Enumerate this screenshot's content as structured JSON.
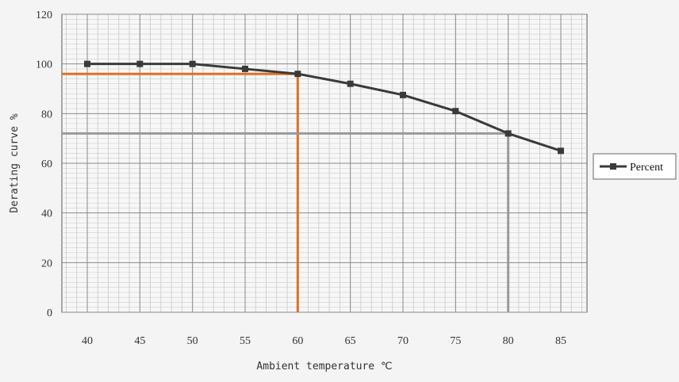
{
  "chart_data": {
    "type": "line",
    "xlabel": "Ambient temperature ℃",
    "ylabel": "Derating curve %",
    "xlim": [
      40,
      85
    ],
    "ylim": [
      0,
      120
    ],
    "x_ticks": [
      40,
      45,
      50,
      55,
      60,
      65,
      70,
      75,
      80,
      85
    ],
    "y_ticks": [
      0,
      20,
      40,
      60,
      80,
      100,
      120
    ],
    "grid": true,
    "legend": "right",
    "series": [
      {
        "name": "Percent",
        "color": "#3a3a3a",
        "x": [
          40,
          45,
          50,
          55,
          60,
          65,
          70,
          75,
          80,
          85
        ],
        "y": [
          100,
          100,
          100,
          98,
          96,
          92,
          87.5,
          81,
          72,
          65
        ]
      }
    ],
    "annotations": [
      {
        "type": "crosshair",
        "x": 60,
        "y": 96,
        "color": "#e07020"
      },
      {
        "type": "crosshair",
        "x": 80,
        "y": 72,
        "color": "#9a9a9a"
      }
    ]
  }
}
